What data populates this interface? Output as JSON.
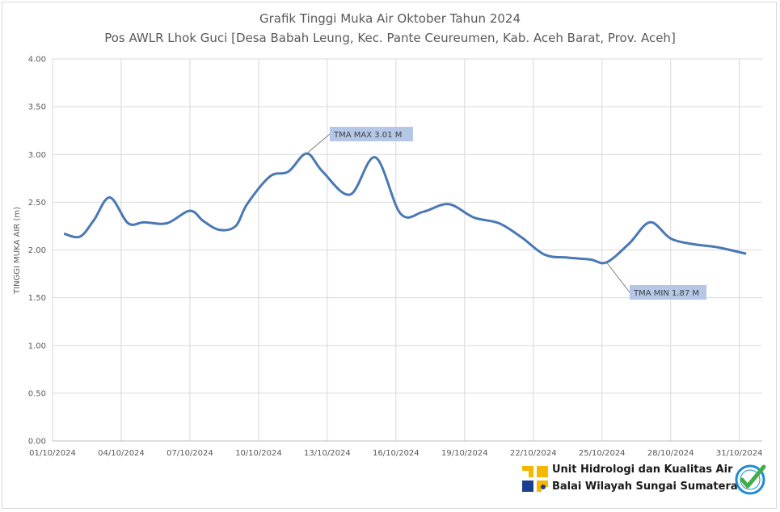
{
  "chart_data": {
    "type": "line",
    "title": "Grafik Tinggi Muka Air Oktober Tahun 2024",
    "subtitle": "Pos AWLR Lhok Guci [Desa Babah Leung, Kec. Pante Ceureumen, Kab. Aceh Barat, Prov. Aceh]",
    "ylabel": "TINGGI MUKA AIR (m)",
    "xlabel": "",
    "ylim": [
      0,
      4
    ],
    "yticks": [
      "0.00",
      "0.50",
      "1.00",
      "1.50",
      "2.00",
      "2.50",
      "3.00",
      "3.50",
      "4.00"
    ],
    "xticks": [
      "01/10/2024",
      "04/10/2024",
      "07/10/2024",
      "10/10/2024",
      "13/10/2024",
      "16/10/2024",
      "19/10/2024",
      "22/10/2024",
      "25/10/2024",
      "28/10/2024",
      "31/10/2024"
    ],
    "grid": true,
    "color": "#4a78b5",
    "series": [
      {
        "x": [
          1.5,
          2.2,
          2.8,
          3.5,
          4.3,
          5.0,
          6.0,
          7.0,
          7.6,
          8.3,
          9.0,
          9.5,
          10.5,
          11.3,
          12.1,
          12.8,
          14.0,
          15.1,
          16.2,
          17.2,
          18.3,
          19.4,
          20.5,
          21.5,
          22.5,
          23.5,
          24.5,
          25.2,
          26.2,
          27.1,
          28.0,
          29.0,
          30.0,
          31.3
        ],
        "y": [
          2.17,
          2.14,
          2.31,
          2.55,
          2.28,
          2.29,
          2.28,
          2.41,
          2.3,
          2.21,
          2.25,
          2.48,
          2.77,
          2.82,
          3.01,
          2.82,
          2.58,
          2.97,
          2.38,
          2.4,
          2.48,
          2.34,
          2.28,
          2.13,
          1.95,
          1.92,
          1.9,
          1.87,
          2.07,
          2.29,
          2.12,
          2.06,
          2.03,
          1.96
        ]
      }
    ],
    "annotations": [
      {
        "text": "TMA MAX  3.01   M",
        "x": 12.1,
        "y": 3.01
      },
      {
        "text": "TMA MIN  1.87   M",
        "x": 25.2,
        "y": 1.87
      }
    ]
  },
  "logo": {
    "line1": "Unit Hidrologi dan Kualitas Air",
    "line2": "Balai Wilayah Sungai Sumatera-I",
    "emblem_icon": "pupr-logo-icon",
    "badge_icon": "certified-check-icon",
    "emblem_color": "#f5b800",
    "badge_color": "#1f8bd0",
    "check_color": "#3fae49"
  }
}
